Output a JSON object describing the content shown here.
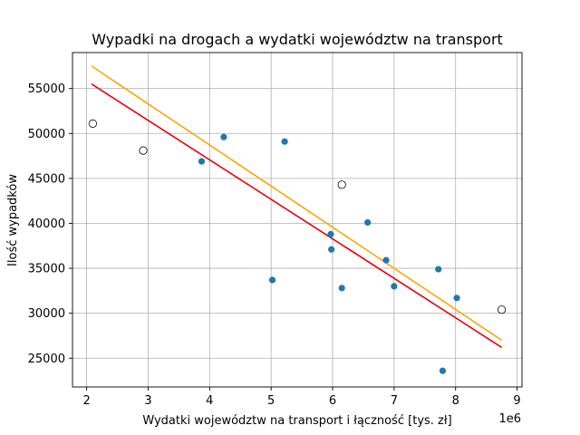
{
  "chart_data": {
    "type": "scatter",
    "title": "Wypadki na drogach a wydatki województw na transport",
    "xlabel": "Wydatki województw na transport i łączność [tys. zł]",
    "ylabel": "Ilość wypadków",
    "x_offset_label": "1e6",
    "x_ticks": [
      2,
      3,
      4,
      5,
      6,
      7,
      8,
      9
    ],
    "x_tick_labels": [
      "2",
      "3",
      "4",
      "5",
      "6",
      "7",
      "8",
      "9"
    ],
    "y_ticks": [
      25000,
      30000,
      35000,
      40000,
      45000,
      50000,
      55000
    ],
    "y_tick_labels": [
      "25000",
      "30000",
      "35000",
      "40000",
      "45000",
      "50000",
      "55000"
    ],
    "xlim": [
      1.77,
      9.08
    ],
    "ylim": [
      21800,
      59000
    ],
    "grid": true,
    "series": [
      {
        "marker": "filled-circle",
        "color": "#1f77b4",
        "points": [
          [
            3.87,
            46900
          ],
          [
            4.23,
            49600
          ],
          [
            5.22,
            49100
          ],
          [
            5.02,
            33700
          ],
          [
            5.97,
            38800
          ],
          [
            5.98,
            37100
          ],
          [
            6.15,
            32800
          ],
          [
            6.57,
            40100
          ],
          [
            6.87,
            35900
          ],
          [
            7.0,
            33000
          ],
          [
            7.72,
            34900
          ],
          [
            8.02,
            31700
          ],
          [
            7.79,
            23600
          ]
        ]
      },
      {
        "marker": "open-circle",
        "color": "#000000",
        "points": [
          [
            2.1,
            51100
          ],
          [
            2.92,
            48100
          ],
          [
            6.15,
            44300
          ],
          [
            8.75,
            30400
          ]
        ]
      }
    ],
    "lines": [
      {
        "color": "#e8000b",
        "from": [
          2.08,
          55500
        ],
        "to": [
          8.75,
          26200
        ]
      },
      {
        "color": "#ffa500",
        "from": [
          2.08,
          57500
        ],
        "to": [
          8.75,
          27000
        ]
      }
    ]
  }
}
